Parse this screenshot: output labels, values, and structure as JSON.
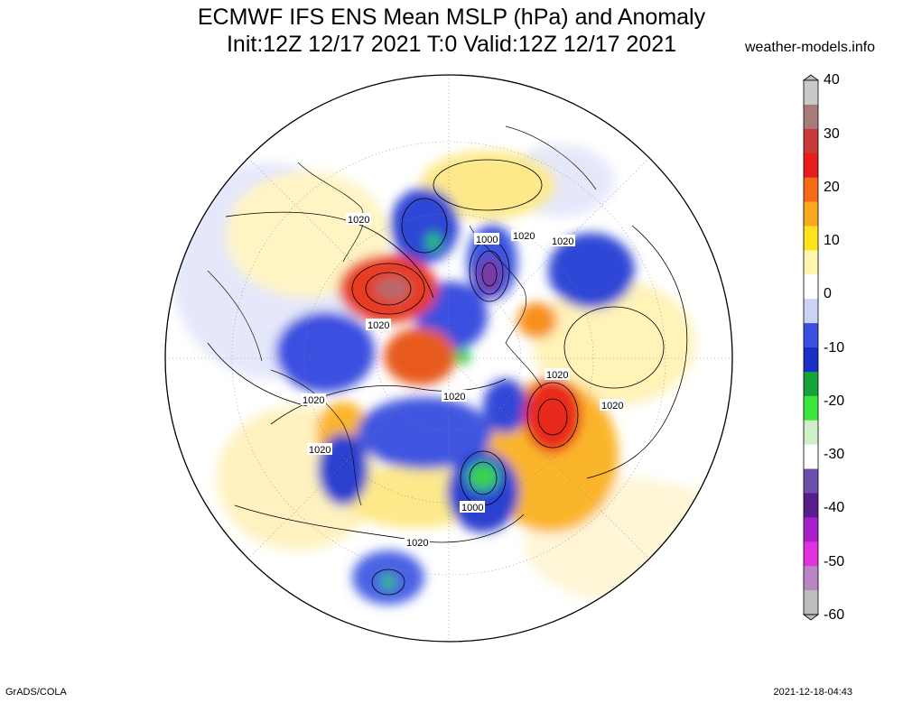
{
  "header": {
    "title_line1": "ECMWF IFS ENS Mean MSLP (hPa) and Anomaly",
    "title_line2": "Init:12Z 12/17 2021  T:0 Valid:12Z 12/17 2021",
    "brand": "weather-models.info"
  },
  "footer": {
    "credit": "GrADS/COLA",
    "timestamp": "2021-12-18-04:43"
  },
  "colorbar": {
    "labels": [
      "40",
      "30",
      "20",
      "10",
      "0",
      "-10",
      "-20",
      "-30",
      "-40",
      "-50",
      "-60"
    ],
    "colors": [
      "#c9c9c9",
      "#a87b7b",
      "#c83a3a",
      "#e81c1c",
      "#f56a18",
      "#fba91c",
      "#fde31c",
      "#fff7b0",
      "#ffffff",
      "#c9d3f5",
      "#3b50e0",
      "#1b2fc8",
      "#16a23a",
      "#3ce63c",
      "#cfeec9",
      "#ffffff",
      "#6b4fa8",
      "#5a1e8c",
      "#a520c8",
      "#e030e0",
      "#b985c2",
      "#bdbdbd"
    ]
  },
  "map": {
    "contour_labels": [
      {
        "text": "1020"
      },
      {
        "text": "1000"
      },
      {
        "text": "1020"
      },
      {
        "text": "1020"
      },
      {
        "text": "1020"
      },
      {
        "text": "1020"
      },
      {
        "text": "1020"
      },
      {
        "text": "1020"
      },
      {
        "text": "1020"
      },
      {
        "text": "1020"
      },
      {
        "text": "1000"
      },
      {
        "text": "1020"
      }
    ]
  }
}
